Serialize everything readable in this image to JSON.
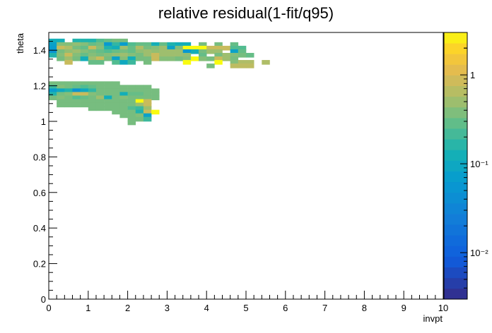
{
  "chart_data": {
    "type": "heatmap",
    "title": "relative residual(1-fit/q95)",
    "xlabel": "invpt",
    "ylabel": "theta",
    "xlim": [
      0,
      10
    ],
    "ylim": [
      0,
      1.5
    ],
    "x_ticks": [
      "0",
      "1",
      "2",
      "3",
      "4",
      "5",
      "6",
      "7",
      "8",
      "9",
      "10"
    ],
    "y_ticks": [
      "0",
      "0.2",
      "0.4",
      "0.6",
      "0.8",
      "1",
      "1.2",
      "1.4"
    ],
    "x_bins": 50,
    "y_bins": 60,
    "colorbar": {
      "scale": "log",
      "range": [
        0.003,
        3.0
      ],
      "ticks": [
        {
          "value": 0.01,
          "label": "10⁻²"
        },
        {
          "value": 0.1,
          "label": "10⁻¹"
        },
        {
          "value": 1,
          "label": "1"
        }
      ]
    },
    "cells": [
      [
        0.0,
        1.44,
        0.12
      ],
      [
        0.2,
        1.44,
        0.12
      ],
      [
        0.6,
        1.44,
        0.15
      ],
      [
        0.8,
        1.44,
        0.15
      ],
      [
        1.0,
        1.44,
        0.15
      ],
      [
        1.2,
        1.44,
        0.25
      ],
      [
        1.4,
        1.44,
        0.3
      ],
      [
        1.6,
        1.44,
        0.35
      ],
      [
        1.8,
        1.44,
        0.35
      ],
      [
        0.0,
        1.42,
        0.08
      ],
      [
        0.2,
        1.42,
        0.4
      ],
      [
        0.4,
        1.42,
        0.4
      ],
      [
        0.6,
        1.42,
        0.45
      ],
      [
        0.8,
        1.42,
        0.4
      ],
      [
        1.0,
        1.42,
        0.3
      ],
      [
        1.2,
        1.42,
        0.35
      ],
      [
        1.4,
        1.42,
        0.06
      ],
      [
        1.6,
        1.42,
        0.18
      ],
      [
        1.8,
        1.42,
        0.07
      ],
      [
        2.0,
        1.42,
        0.25
      ],
      [
        2.2,
        1.42,
        0.3
      ],
      [
        2.4,
        1.42,
        0.3
      ],
      [
        2.6,
        1.42,
        0.12
      ],
      [
        2.8,
        1.42,
        0.3
      ],
      [
        3.0,
        1.42,
        0.15
      ],
      [
        3.2,
        1.42,
        0.12
      ],
      [
        3.4,
        1.42,
        0.12
      ],
      [
        3.8,
        1.42,
        0.35
      ],
      [
        4.2,
        1.42,
        0.35
      ],
      [
        4.6,
        1.42,
        0.3
      ],
      [
        0.0,
        1.4,
        0.07
      ],
      [
        0.2,
        1.4,
        0.8
      ],
      [
        0.4,
        1.4,
        0.6
      ],
      [
        0.6,
        1.4,
        0.35
      ],
      [
        0.8,
        1.4,
        0.3
      ],
      [
        1.0,
        1.4,
        0.8
      ],
      [
        1.2,
        1.4,
        0.4
      ],
      [
        1.4,
        1.4,
        0.15
      ],
      [
        1.6,
        1.4,
        0.12
      ],
      [
        1.8,
        1.4,
        0.5
      ],
      [
        2.0,
        1.4,
        0.3
      ],
      [
        2.2,
        1.4,
        0.6
      ],
      [
        2.4,
        1.4,
        0.35
      ],
      [
        2.6,
        1.4,
        0.4
      ],
      [
        2.8,
        1.4,
        0.5
      ],
      [
        3.0,
        1.4,
        0.08
      ],
      [
        3.2,
        1.4,
        0.4
      ],
      [
        3.4,
        1.4,
        3.0
      ],
      [
        3.6,
        1.4,
        3.0
      ],
      [
        3.8,
        1.4,
        3.0
      ],
      [
        4.0,
        1.4,
        0.8
      ],
      [
        4.2,
        1.4,
        0.8
      ],
      [
        4.4,
        1.4,
        0.8
      ],
      [
        4.6,
        1.4,
        0.25
      ],
      [
        4.8,
        1.4,
        0.25
      ],
      [
        0.0,
        1.38,
        0.05
      ],
      [
        0.2,
        1.38,
        0.35
      ],
      [
        0.4,
        1.38,
        0.45
      ],
      [
        0.6,
        1.38,
        0.5
      ],
      [
        0.8,
        1.38,
        0.4
      ],
      [
        1.0,
        1.38,
        0.35
      ],
      [
        1.2,
        1.38,
        0.3
      ],
      [
        1.4,
        1.38,
        0.25
      ],
      [
        1.6,
        1.38,
        0.3
      ],
      [
        1.8,
        1.38,
        0.35
      ],
      [
        2.0,
        1.38,
        0.3
      ],
      [
        2.2,
        1.38,
        0.45
      ],
      [
        2.4,
        1.38,
        0.5
      ],
      [
        2.6,
        1.38,
        0.45
      ],
      [
        2.8,
        1.38,
        0.5
      ],
      [
        3.0,
        1.38,
        0.5
      ],
      [
        3.2,
        1.38,
        0.5
      ],
      [
        3.4,
        1.38,
        0.06
      ],
      [
        3.6,
        1.38,
        0.12
      ],
      [
        3.8,
        1.38,
        0.35
      ],
      [
        4.0,
        1.38,
        0.5
      ],
      [
        4.2,
        1.38,
        0.5
      ],
      [
        4.6,
        1.38,
        0.08
      ],
      [
        4.8,
        1.38,
        0.3
      ],
      [
        0.0,
        1.36,
        0.15
      ],
      [
        0.2,
        1.36,
        0.4
      ],
      [
        0.4,
        1.36,
        0.8
      ],
      [
        0.6,
        1.36,
        0.4
      ],
      [
        0.8,
        1.36,
        0.3
      ],
      [
        1.0,
        1.36,
        0.4
      ],
      [
        1.2,
        1.36,
        0.35
      ],
      [
        1.4,
        1.36,
        0.4
      ],
      [
        1.6,
        1.36,
        0.45
      ],
      [
        1.8,
        1.36,
        0.5
      ],
      [
        2.0,
        1.36,
        0.4
      ],
      [
        2.2,
        1.36,
        0.35
      ],
      [
        2.4,
        1.36,
        0.5
      ],
      [
        2.6,
        1.36,
        0.8
      ],
      [
        2.8,
        1.36,
        0.5
      ],
      [
        3.0,
        1.36,
        0.5
      ],
      [
        3.2,
        1.36,
        0.5
      ],
      [
        3.4,
        1.36,
        0.45
      ],
      [
        3.8,
        1.36,
        0.3
      ],
      [
        4.2,
        1.36,
        0.35
      ],
      [
        4.4,
        1.36,
        0.5
      ],
      [
        4.6,
        1.36,
        0.4
      ],
      [
        4.8,
        1.36,
        0.35
      ],
      [
        5.0,
        1.36,
        0.3
      ],
      [
        0.2,
        1.34,
        0.35
      ],
      [
        0.4,
        1.34,
        0.5
      ],
      [
        0.6,
        1.34,
        0.35
      ],
      [
        0.8,
        1.34,
        0.12
      ],
      [
        1.0,
        1.34,
        0.5
      ],
      [
        1.2,
        1.34,
        0.8
      ],
      [
        1.4,
        1.34,
        0.35
      ],
      [
        1.6,
        1.34,
        0.08
      ],
      [
        1.8,
        1.34,
        0.4
      ],
      [
        2.0,
        1.34,
        0.12
      ],
      [
        2.2,
        1.34,
        0.35
      ],
      [
        2.4,
        1.34,
        0.35
      ],
      [
        2.6,
        1.34,
        0.8
      ],
      [
        2.8,
        1.34,
        0.4
      ],
      [
        3.0,
        1.34,
        0.4
      ],
      [
        3.2,
        1.34,
        0.35
      ],
      [
        3.4,
        1.34,
        0.4
      ],
      [
        3.6,
        1.34,
        3.0
      ],
      [
        3.8,
        1.34,
        0.4
      ],
      [
        4.0,
        1.34,
        0.35
      ],
      [
        4.2,
        1.34,
        0.8
      ],
      [
        4.4,
        1.34,
        0.5
      ],
      [
        4.6,
        1.34,
        0.35
      ],
      [
        0.4,
        1.32,
        0.8
      ],
      [
        1.0,
        1.32,
        0.3
      ],
      [
        1.2,
        1.32,
        0.3
      ],
      [
        1.6,
        1.32,
        0.25
      ],
      [
        1.8,
        1.32,
        0.1
      ],
      [
        2.0,
        1.32,
        0.2
      ],
      [
        2.4,
        1.32,
        0.35
      ],
      [
        3.4,
        1.32,
        3.0
      ],
      [
        4.2,
        1.32,
        3.0
      ],
      [
        4.6,
        1.32,
        0.4
      ],
      [
        4.8,
        1.32,
        0.6
      ],
      [
        5.0,
        1.32,
        0.6
      ],
      [
        5.4,
        1.32,
        0.6
      ],
      [
        4.0,
        1.3,
        0.35
      ],
      [
        4.6,
        1.3,
        0.7
      ],
      [
        4.8,
        1.3,
        0.7
      ],
      [
        5.0,
        1.3,
        0.7
      ],
      [
        0.0,
        1.2,
        0.35
      ],
      [
        0.2,
        1.2,
        0.35
      ],
      [
        0.4,
        1.2,
        0.35
      ],
      [
        0.6,
        1.2,
        0.35
      ],
      [
        0.8,
        1.2,
        0.35
      ],
      [
        1.0,
        1.2,
        0.35
      ],
      [
        1.2,
        1.2,
        0.35
      ],
      [
        1.4,
        1.2,
        0.35
      ],
      [
        1.6,
        1.2,
        0.35
      ],
      [
        0.0,
        1.18,
        0.2
      ],
      [
        0.2,
        1.18,
        0.4
      ],
      [
        0.4,
        1.18,
        0.35
      ],
      [
        0.6,
        1.18,
        0.3
      ],
      [
        0.8,
        1.18,
        0.25
      ],
      [
        1.0,
        1.18,
        0.3
      ],
      [
        1.2,
        1.18,
        0.35
      ],
      [
        1.4,
        1.18,
        0.35
      ],
      [
        1.6,
        1.18,
        0.35
      ],
      [
        1.8,
        1.18,
        0.35
      ],
      [
        2.0,
        1.18,
        0.35
      ],
      [
        2.2,
        1.18,
        0.35
      ],
      [
        2.4,
        1.18,
        0.35
      ],
      [
        0.0,
        1.16,
        0.07
      ],
      [
        0.2,
        1.16,
        0.1
      ],
      [
        0.4,
        1.16,
        0.15
      ],
      [
        0.6,
        1.16,
        0.05
      ],
      [
        0.8,
        1.16,
        0.1
      ],
      [
        1.0,
        1.16,
        0.18
      ],
      [
        1.2,
        1.16,
        0.35
      ],
      [
        1.4,
        1.16,
        0.35
      ],
      [
        1.6,
        1.16,
        0.35
      ],
      [
        1.8,
        1.16,
        0.35
      ],
      [
        2.0,
        1.16,
        0.35
      ],
      [
        2.2,
        1.16,
        0.35
      ],
      [
        2.4,
        1.16,
        0.35
      ],
      [
        2.6,
        1.16,
        0.35
      ],
      [
        0.0,
        1.14,
        0.15
      ],
      [
        0.2,
        1.14,
        0.35
      ],
      [
        0.4,
        1.14,
        0.4
      ],
      [
        0.6,
        1.14,
        0.8
      ],
      [
        0.8,
        1.14,
        0.8
      ],
      [
        1.0,
        1.14,
        0.4
      ],
      [
        1.2,
        1.14,
        0.35
      ],
      [
        1.4,
        1.14,
        0.35
      ],
      [
        1.6,
        1.14,
        0.35
      ],
      [
        1.8,
        1.14,
        0.12
      ],
      [
        2.0,
        1.14,
        0.3
      ],
      [
        2.2,
        1.14,
        0.3
      ],
      [
        2.4,
        1.14,
        0.35
      ],
      [
        2.6,
        1.14,
        0.35
      ],
      [
        0.0,
        1.12,
        0.35
      ],
      [
        0.2,
        1.12,
        0.4
      ],
      [
        0.4,
        1.12,
        0.35
      ],
      [
        0.6,
        1.12,
        0.25
      ],
      [
        0.8,
        1.12,
        0.3
      ],
      [
        1.0,
        1.12,
        0.35
      ],
      [
        1.2,
        1.12,
        0.5
      ],
      [
        1.4,
        1.12,
        0.12
      ],
      [
        1.6,
        1.12,
        0.35
      ],
      [
        1.8,
        1.12,
        0.4
      ],
      [
        2.0,
        1.12,
        0.35
      ],
      [
        2.2,
        1.12,
        0.35
      ],
      [
        2.4,
        1.12,
        0.35
      ],
      [
        2.6,
        1.12,
        0.35
      ],
      [
        0.2,
        1.1,
        0.35
      ],
      [
        0.4,
        1.1,
        0.35
      ],
      [
        0.6,
        1.1,
        0.35
      ],
      [
        0.8,
        1.1,
        0.35
      ],
      [
        1.0,
        1.1,
        0.35
      ],
      [
        1.2,
        1.1,
        0.35
      ],
      [
        1.4,
        1.1,
        0.35
      ],
      [
        1.6,
        1.1,
        0.35
      ],
      [
        1.8,
        1.1,
        0.35
      ],
      [
        2.0,
        1.1,
        0.35
      ],
      [
        2.2,
        1.1,
        3.0
      ],
      [
        2.4,
        1.1,
        0.8
      ],
      [
        0.2,
        1.08,
        0.35
      ],
      [
        0.4,
        1.08,
        0.35
      ],
      [
        0.6,
        1.08,
        0.35
      ],
      [
        0.8,
        1.08,
        0.35
      ],
      [
        1.0,
        1.08,
        0.35
      ],
      [
        1.2,
        1.08,
        0.35
      ],
      [
        1.4,
        1.08,
        0.35
      ],
      [
        1.6,
        1.08,
        0.35
      ],
      [
        1.8,
        1.08,
        0.35
      ],
      [
        2.0,
        1.08,
        0.35
      ],
      [
        2.2,
        1.08,
        0.5
      ],
      [
        2.4,
        1.08,
        0.8
      ],
      [
        1.0,
        1.06,
        0.35
      ],
      [
        1.2,
        1.06,
        0.35
      ],
      [
        1.4,
        1.06,
        0.35
      ],
      [
        1.6,
        1.06,
        0.35
      ],
      [
        1.8,
        1.06,
        0.35
      ],
      [
        2.0,
        1.06,
        0.25
      ],
      [
        2.2,
        1.06,
        0.2
      ],
      [
        2.4,
        1.06,
        0.5
      ],
      [
        1.6,
        1.04,
        0.35
      ],
      [
        1.8,
        1.04,
        0.35
      ],
      [
        2.0,
        1.04,
        0.35
      ],
      [
        2.2,
        1.04,
        0.15
      ],
      [
        2.4,
        1.04,
        0.8
      ],
      [
        2.6,
        1.04,
        3.0
      ],
      [
        1.8,
        1.02,
        0.35
      ],
      [
        2.0,
        1.02,
        0.35
      ],
      [
        2.2,
        1.02,
        0.4
      ],
      [
        2.4,
        1.02,
        0.08
      ],
      [
        2.0,
        1.0,
        0.35
      ],
      [
        2.2,
        1.0,
        0.35
      ],
      [
        2.4,
        1.0,
        0.2
      ],
      [
        2.0,
        0.98,
        0.35
      ]
    ]
  }
}
